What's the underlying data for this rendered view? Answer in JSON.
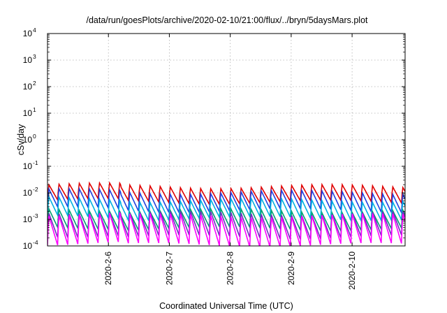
{
  "chart_data": {
    "type": "line",
    "title": "/data/run/goesPlots/archive/2020-02-10/21:00/flux/../bryn/5daysMars.plot",
    "xlabel": "Coordinated Universal Time (UTC)",
    "ylabel": "cSv/day",
    "x_ticks": [
      "2020-2-6",
      "2020-2-7",
      "2020-2-8",
      "2020-2-9",
      "2020-2-10"
    ],
    "x_tick_values": [
      1.0,
      2.0,
      3.0,
      4.0,
      5.0
    ],
    "xlim": [
      0.0,
      5.87
    ],
    "y_scale": "log",
    "ylim": [
      0.0001,
      10000
    ],
    "y_ticks": [
      {
        "base": "10",
        "exp": "-4"
      },
      {
        "base": "10",
        "exp": "-3"
      },
      {
        "base": "10",
        "exp": "-2"
      },
      {
        "base": "10",
        "exp": "-1"
      },
      {
        "base": "10",
        "exp": "0"
      },
      {
        "base": "10",
        "exp": "1"
      },
      {
        "base": "10",
        "exp": "2"
      },
      {
        "base": "10",
        "exp": "3"
      },
      {
        "base": "10",
        "exp": "4"
      }
    ],
    "grid": true,
    "sawtooth_period_days": 0.166,
    "series": [
      {
        "color": "#e00000",
        "peak": 0.018,
        "trough": 0.0045
      },
      {
        "color": "#2040e0",
        "peak": 0.011,
        "trough": 0.0022
      },
      {
        "color": "#00b0e0",
        "peak": 0.0055,
        "trough": 0.0011
      },
      {
        "color": "#00a070",
        "peak": 0.0022,
        "trough": 0.00045
      },
      {
        "color": "#7030c0",
        "peak": 0.0018,
        "trough": 0.00022
      },
      {
        "color": "#ff00ff",
        "peak": 0.0015,
        "trough": 0.00011
      }
    ]
  }
}
